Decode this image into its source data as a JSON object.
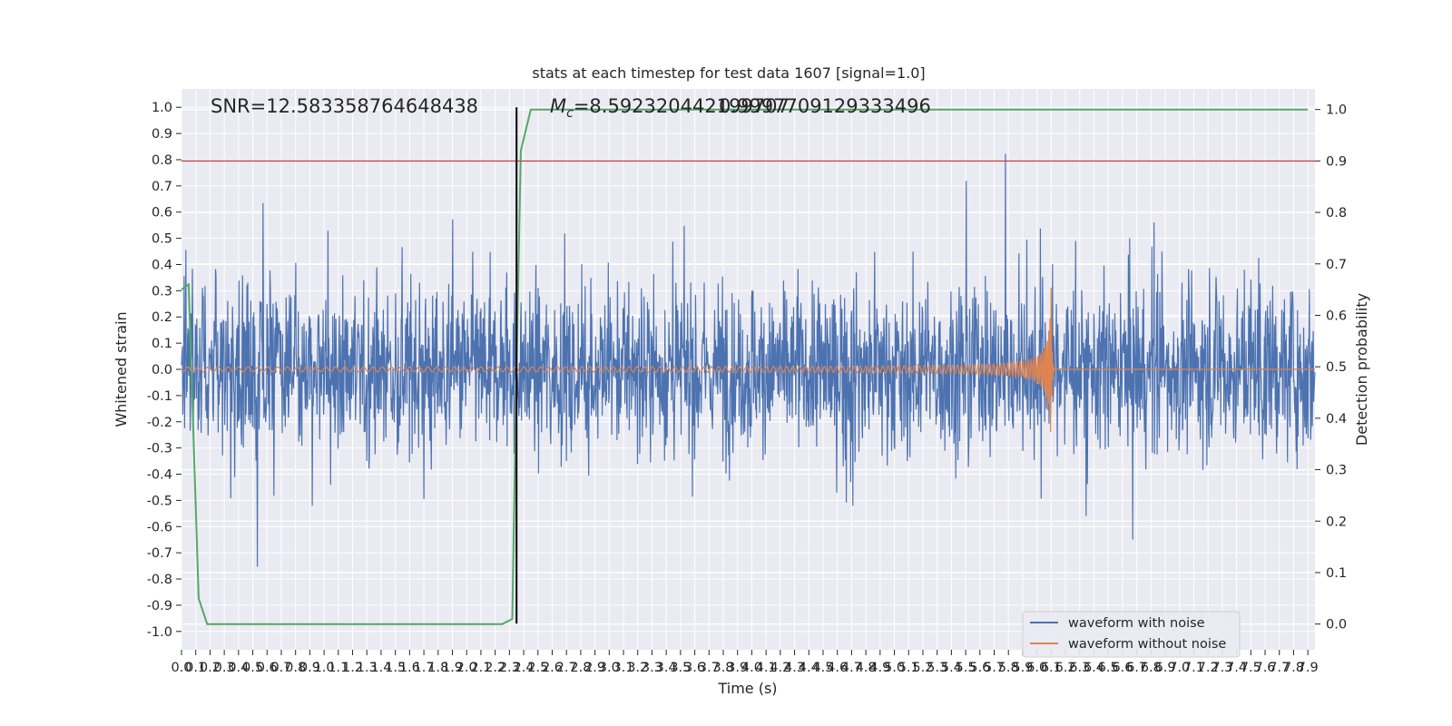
{
  "chart_data": {
    "type": "line",
    "title": "stats at each timestep for test data 1607 [signal=1.0]",
    "xlabel": "Time (s)",
    "ylabel": "Whitened strain",
    "y2label": "Detection probability",
    "xlim": [
      0.0,
      7.95
    ],
    "ylim": [
      -1.07,
      1.07
    ],
    "y2lim": [
      -0.05,
      1.04
    ],
    "x_ticks": [
      0.0,
      0.1,
      0.2,
      0.3,
      0.4,
      0.5,
      0.6,
      0.7,
      0.8,
      0.9,
      1.0,
      1.1,
      1.2,
      1.3,
      1.4,
      1.5,
      1.6,
      1.7,
      1.8,
      1.9,
      2.0,
      2.1,
      2.2,
      2.3,
      2.4,
      2.5,
      2.6,
      2.7,
      2.8,
      2.9,
      3.0,
      3.1,
      3.2,
      3.3,
      3.4,
      3.5,
      3.6,
      3.7,
      3.8,
      3.9,
      4.0,
      4.1,
      4.2,
      4.3,
      4.4,
      4.5,
      4.6,
      4.7,
      4.8,
      4.9,
      5.0,
      5.1,
      5.2,
      5.3,
      5.4,
      5.5,
      5.6,
      5.7,
      5.8,
      5.9,
      6.0,
      6.1,
      6.2,
      6.3,
      6.4,
      6.5,
      6.6,
      6.7,
      6.8,
      6.9,
      7.0,
      7.1,
      7.2,
      7.3,
      7.4,
      7.5,
      7.6,
      7.7,
      7.8,
      7.9
    ],
    "y_ticks": [
      -1.0,
      -0.9,
      -0.8,
      -0.7,
      -0.6,
      -0.5,
      -0.4,
      -0.3,
      -0.2,
      -0.1,
      0.0,
      0.1,
      0.2,
      0.3,
      0.4,
      0.5,
      0.6,
      0.7,
      0.8,
      0.9,
      1.0
    ],
    "y2_ticks": [
      0.0,
      0.1,
      0.2,
      0.3,
      0.4,
      0.5,
      0.6,
      0.7,
      0.8,
      0.9,
      1.0
    ],
    "grid": true,
    "legend_position": "bottom-right",
    "annotations": {
      "snr": "SNR=12.583358764648438",
      "mc": "$M_c$=8.592320442199707",
      "mc_overlap": "0.9997709129333496"
    },
    "threshold_probability": 0.9,
    "merger_time": 2.35,
    "merger_end_time": 6.1,
    "series": [
      {
        "name": "waveform with noise",
        "axis": "left",
        "style": "noise",
        "amplitude_envelope": 0.97
      },
      {
        "name": "waveform without noise",
        "axis": "left",
        "style": "chirp",
        "peak_amplitude": 0.36
      },
      {
        "axis": "right",
        "style": "probability",
        "x": [
          0.0,
          0.05,
          0.12,
          0.18,
          2.25,
          2.32,
          2.35,
          2.38,
          2.45,
          7.9
        ],
        "y": [
          0.65,
          0.66,
          0.05,
          0.0,
          0.0,
          0.01,
          0.5,
          0.92,
          1.0,
          1.0
        ]
      }
    ],
    "colors": {
      "noise": "#4c72b0",
      "clean": "#dd8452",
      "probability": "#55a868",
      "threshold": "#c44e52",
      "merger": "#000000",
      "plot_bg": "#eaeaf2",
      "grid": "#ffffff"
    }
  }
}
